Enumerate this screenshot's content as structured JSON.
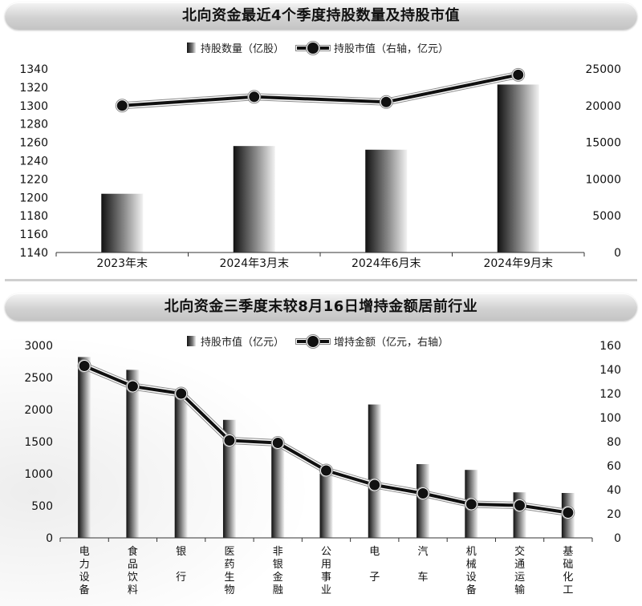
{
  "charts": [
    {
      "title": "北向资金最近4个季度持股数量及持股市值",
      "legend": {
        "bar_label": "持股数量（亿股）",
        "line_label": "持股市值（右轴，亿元）"
      }
    },
    {
      "title": "北向资金三季度末较8月16日增持金额居前行业",
      "legend": {
        "bar_label": "持股市值（亿元）",
        "line_label": "增持金额（亿元，右轴）"
      }
    }
  ],
  "colors": {
    "bar_dark": "#111111",
    "bar_light": "#f2f2f2",
    "line": "#111111",
    "title_bar": "#d2d2d2"
  },
  "chart_data": [
    {
      "type": "bar",
      "title": "北向资金最近4个季度持股数量及持股市值",
      "categories": [
        "2023年末",
        "2024年3月末",
        "2024年6月末",
        "2024年9月末"
      ],
      "series": [
        {
          "name": "持股数量（亿股）",
          "type": "bar",
          "axis": "left",
          "values": [
            1204,
            1256,
            1252,
            1323
          ]
        },
        {
          "name": "持股市值（右轴，亿元）",
          "type": "line",
          "axis": "right",
          "values": [
            20000,
            21200,
            20500,
            24200
          ]
        }
      ],
      "y_left": {
        "min": 1140,
        "max": 1340,
        "ticks": [
          1140,
          1160,
          1180,
          1200,
          1220,
          1240,
          1260,
          1280,
          1300,
          1320,
          1340
        ]
      },
      "y_right": {
        "min": 0,
        "max": 25000,
        "ticks": [
          0,
          5000,
          10000,
          15000,
          20000,
          25000
        ]
      },
      "grid": false,
      "legend_position": "top-center"
    },
    {
      "type": "bar",
      "title": "北向资金三季度末较8月16日增持金额居前行业",
      "categories": [
        "电力设备",
        "食品饮料",
        "银行",
        "医药生物",
        "非银金融",
        "公用事业",
        "电子",
        "汽车",
        "机械设备",
        "交通运输",
        "基础化工"
      ],
      "category_display": [
        "电\n力\n设\n备",
        "食\n品\n饮\n料",
        "银\n\n行",
        "医\n药\n生\n物",
        "非\n银\n金\n融",
        "公\n用\n事\n业",
        "电\n\n子",
        "汽\n\n车",
        "机\n械\n设\n备",
        "交\n通\n运\n输",
        "基\n础\n化\n工"
      ],
      "series": [
        {
          "name": "持股市值（亿元）",
          "type": "bar",
          "axis": "left",
          "values": [
            2820,
            2620,
            2220,
            1840,
            1530,
            1000,
            2080,
            1150,
            1060,
            710,
            700
          ]
        },
        {
          "name": "增持金额（亿元，右轴）",
          "type": "line",
          "axis": "right",
          "values": [
            143,
            126,
            120,
            81,
            79,
            56,
            44,
            37,
            28,
            27,
            21
          ]
        }
      ],
      "y_left": {
        "min": 0,
        "max": 3000,
        "ticks": [
          0,
          500,
          1000,
          1500,
          2000,
          2500,
          3000
        ]
      },
      "y_right": {
        "min": 0,
        "max": 160,
        "ticks": [
          0,
          20,
          40,
          60,
          80,
          100,
          120,
          140,
          160
        ]
      },
      "grid": false,
      "legend_position": "top-center"
    }
  ]
}
